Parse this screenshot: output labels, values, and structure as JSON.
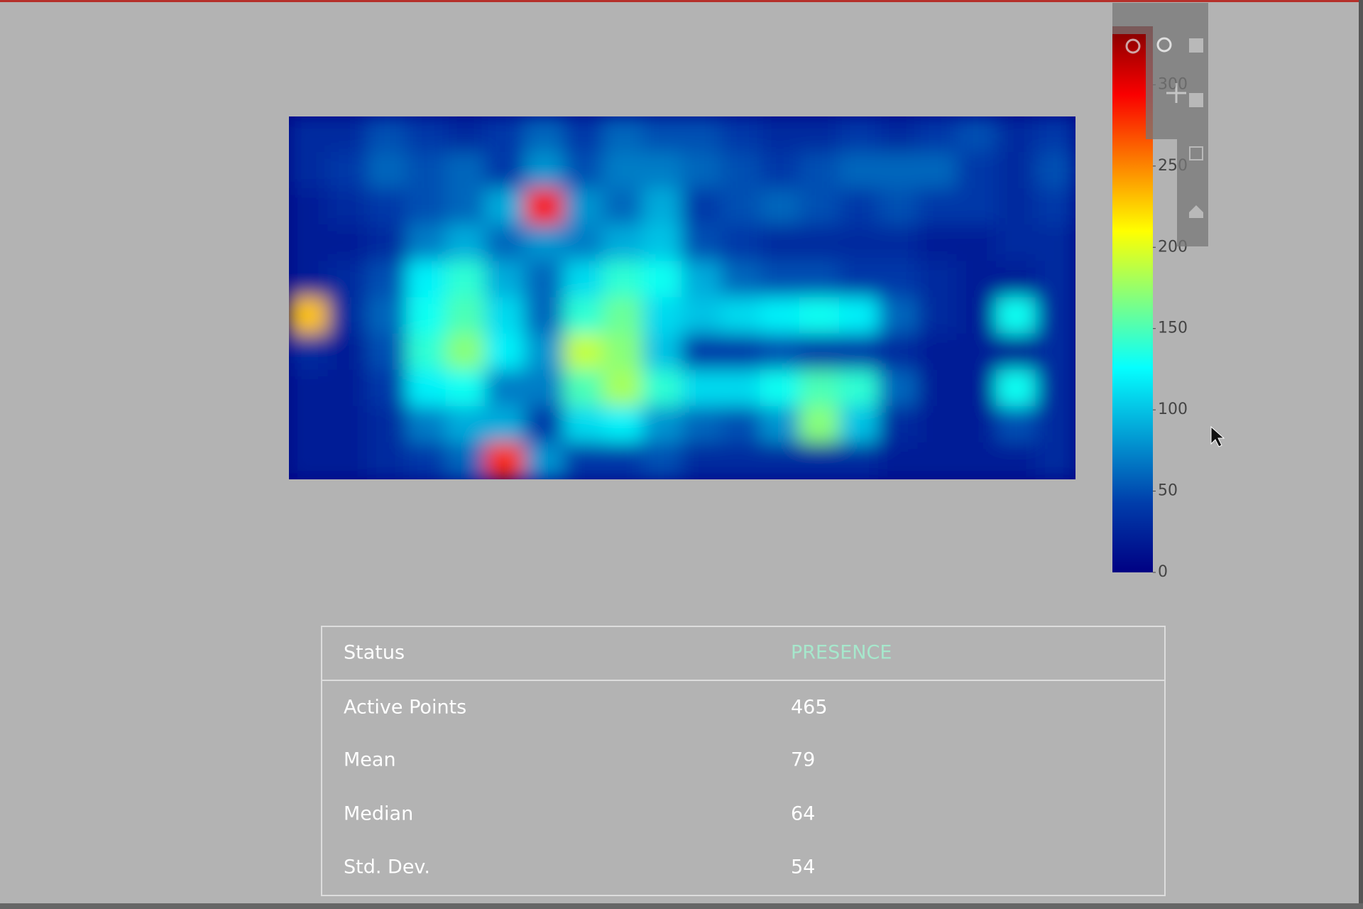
{
  "chart_data": {
    "type": "heatmap",
    "z": [
      [
        30,
        30,
        50,
        40,
        30,
        40,
        60,
        40,
        60,
        50,
        50,
        40,
        30,
        30,
        40,
        30,
        40,
        50,
        30,
        40
      ],
      [
        30,
        40,
        60,
        50,
        60,
        40,
        80,
        50,
        70,
        70,
        60,
        50,
        40,
        50,
        60,
        60,
        60,
        40,
        30,
        50
      ],
      [
        20,
        30,
        40,
        50,
        60,
        90,
        290,
        80,
        60,
        90,
        40,
        50,
        60,
        50,
        40,
        50,
        40,
        40,
        30,
        40
      ],
      [
        20,
        20,
        30,
        70,
        90,
        60,
        80,
        70,
        90,
        100,
        50,
        40,
        30,
        30,
        30,
        30,
        20,
        20,
        30,
        30
      ],
      [
        20,
        30,
        50,
        120,
        140,
        90,
        60,
        110,
        140,
        130,
        90,
        60,
        50,
        50,
        40,
        40,
        30,
        20,
        20,
        30
      ],
      [
        230,
        30,
        60,
        130,
        150,
        110,
        60,
        140,
        160,
        110,
        100,
        110,
        120,
        130,
        120,
        60,
        30,
        20,
        130,
        30
      ],
      [
        30,
        20,
        50,
        140,
        170,
        120,
        80,
        190,
        170,
        100,
        40,
        40,
        50,
        40,
        40,
        30,
        20,
        20,
        20,
        30
      ],
      [
        20,
        20,
        40,
        120,
        130,
        70,
        70,
        150,
        180,
        140,
        110,
        110,
        130,
        150,
        140,
        60,
        20,
        20,
        130,
        30
      ],
      [
        20,
        20,
        30,
        70,
        90,
        90,
        40,
        110,
        120,
        80,
        60,
        50,
        80,
        170,
        100,
        30,
        20,
        20,
        50,
        30
      ],
      [
        20,
        20,
        30,
        40,
        60,
        280,
        80,
        40,
        40,
        50,
        30,
        30,
        30,
        30,
        30,
        20,
        20,
        20,
        20,
        30
      ]
    ],
    "zlim": [
      0,
      336
    ],
    "colorbar_ticks": [
      0,
      50,
      100,
      150,
      200,
      250,
      300
    ],
    "colorscale": [
      [
        0,
        "#000083"
      ],
      [
        0.125,
        "#003caa"
      ],
      [
        0.375,
        "#05ffff"
      ],
      [
        0.625,
        "#ffff00"
      ],
      [
        0.875,
        "#fa0000"
      ],
      [
        1,
        "#800000"
      ]
    ]
  },
  "table": {
    "rows": [
      {
        "label": "Status",
        "value": "PRESENCE"
      },
      {
        "label": "Active Points",
        "value": 465
      },
      {
        "label": "Mean",
        "value": 79
      },
      {
        "label": "Median",
        "value": 64
      },
      {
        "label": "Std. Dev.",
        "value": 54
      }
    ]
  }
}
